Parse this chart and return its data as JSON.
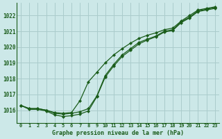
{
  "title": "Graphe pression niveau de la mer (hPa)",
  "bg_color": "#cce8e8",
  "grid_color": "#aacccc",
  "line_color": "#1a5c1a",
  "x_labels": [
    "0",
    "1",
    "2",
    "3",
    "4",
    "5",
    "6",
    "7",
    "8",
    "9",
    "10",
    "11",
    "12",
    "13",
    "14",
    "15",
    "16",
    "17",
    "18",
    "19",
    "20",
    "21",
    "22",
    "23"
  ],
  "ylim": [
    1015.2,
    1022.8
  ],
  "yticks": [
    1016,
    1017,
    1018,
    1019,
    1020,
    1021,
    1022
  ],
  "series": [
    [
      1016.3,
      1016.1,
      1016.1,
      1016.0,
      1015.8,
      1015.75,
      1015.8,
      1015.9,
      1016.1,
      1016.9,
      1018.2,
      1018.9,
      1019.5,
      1019.9,
      1020.3,
      1020.5,
      1020.7,
      1021.0,
      1021.1,
      1021.6,
      1021.9,
      1022.3,
      1022.4,
      1022.5
    ],
    [
      1016.3,
      1016.05,
      1016.05,
      1015.95,
      1015.7,
      1015.6,
      1015.65,
      1015.75,
      1015.95,
      1016.85,
      1018.1,
      1018.8,
      1019.4,
      1019.8,
      1020.2,
      1020.45,
      1020.65,
      1020.95,
      1021.05,
      1021.55,
      1021.85,
      1022.25,
      1022.35,
      1022.45
    ],
    [
      1016.3,
      1016.1,
      1016.1,
      1016.0,
      1015.85,
      1015.8,
      1015.85,
      1016.6,
      1017.8,
      1018.4,
      1019.0,
      1019.5,
      1019.9,
      1020.25,
      1020.55,
      1020.75,
      1020.9,
      1021.1,
      1021.2,
      1021.65,
      1022.0,
      1022.35,
      1022.45,
      1022.55
    ]
  ]
}
